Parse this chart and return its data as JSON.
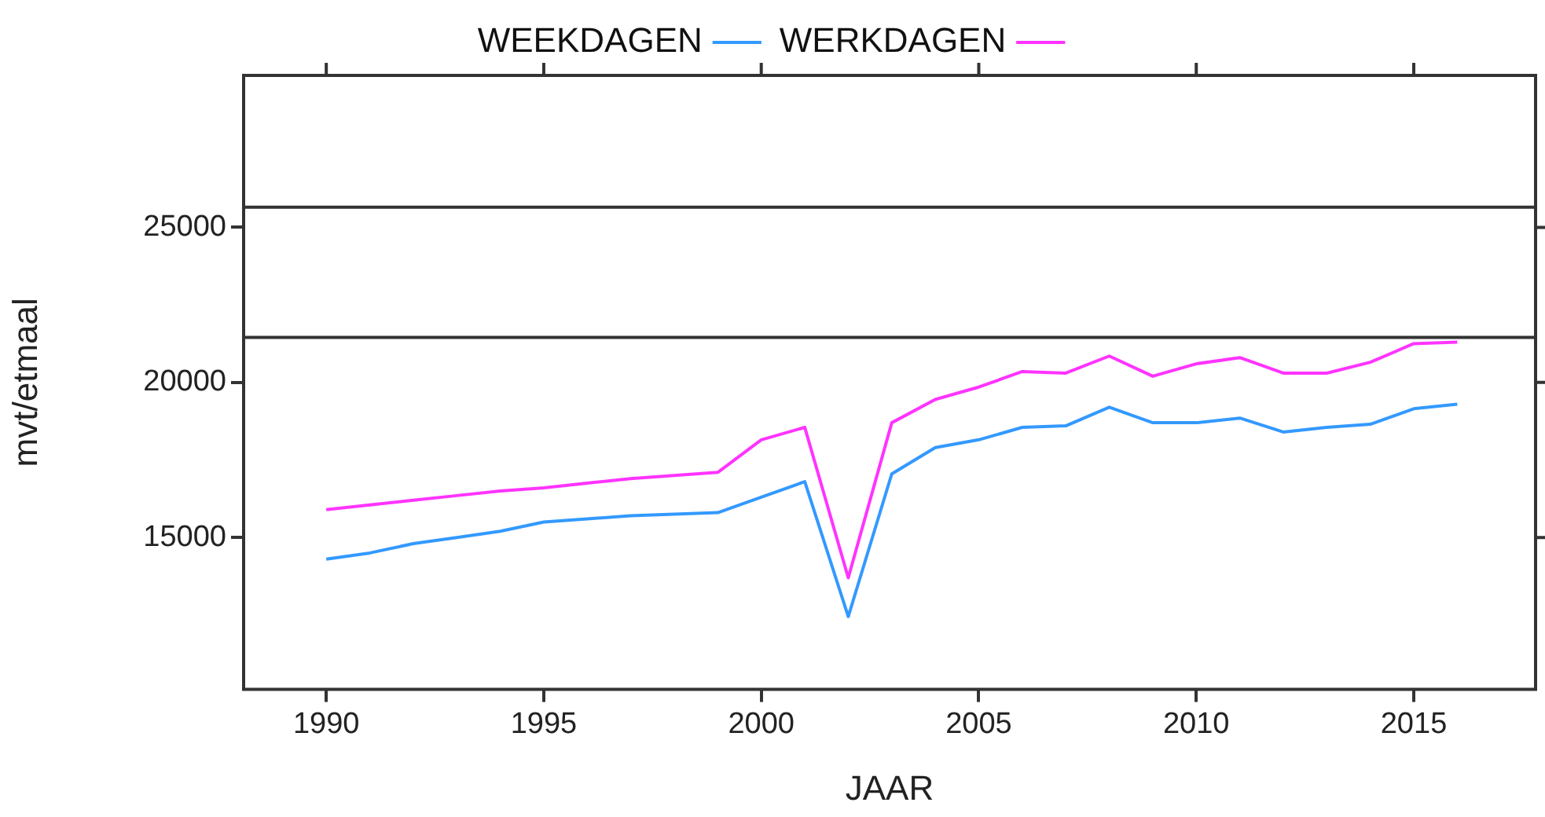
{
  "chart_data": {
    "type": "line",
    "xlabel": "JAAR",
    "ylabel": "mvt/etmaal",
    "x": [
      1990,
      1991,
      1992,
      1993,
      1994,
      1995,
      1996,
      1997,
      1998,
      1999,
      2000,
      2001,
      2002,
      2003,
      2004,
      2005,
      2006,
      2007,
      2008,
      2009,
      2010,
      2011,
      2012,
      2013,
      2014,
      2015,
      2016
    ],
    "series": [
      {
        "name": "WEEKDAGEN",
        "color": "#3399ff",
        "values": [
          14300,
          14500,
          14800,
          15000,
          15200,
          15500,
          15600,
          15700,
          15750,
          15800,
          16300,
          16800,
          12450,
          17050,
          17900,
          18150,
          18550,
          18600,
          19200,
          18700,
          18700,
          18850,
          18400,
          18550,
          18650,
          19150,
          19300
        ]
      },
      {
        "name": "WERKDAGEN",
        "color": "#ff33ff",
        "values": [
          15900,
          16050,
          16200,
          16350,
          16500,
          16600,
          16750,
          16900,
          17000,
          17100,
          18150,
          18550,
          13700,
          18700,
          19450,
          19850,
          20350,
          20300,
          20850,
          20200,
          20600,
          20800,
          20300,
          20300,
          20650,
          21250,
          21300
        ]
      }
    ],
    "xlim": [
      1988.1,
      2017.8
    ],
    "ylim": [
      10100,
      29900
    ],
    "xticks": [
      1990,
      1995,
      2000,
      2005,
      2010,
      2015
    ],
    "yticks": [
      15000,
      20000,
      25000
    ],
    "ref_lines": [
      {
        "axis": "y",
        "value": 25650,
        "color": "#333333"
      },
      {
        "axis": "y",
        "value": 21450,
        "color": "#333333"
      }
    ],
    "legend": "top",
    "marker": "none",
    "line_style": "solid"
  }
}
